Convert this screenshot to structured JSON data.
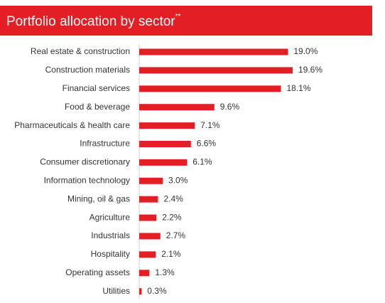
{
  "chart_data": {
    "type": "bar",
    "orientation": "horizontal",
    "title": "Portfolio allocation by sector",
    "title_superscript": "**",
    "color": "#e31e24",
    "categories": [
      "Real estate & construction",
      "Construction materials",
      "Financial services",
      "Food & beverage",
      "Pharmaceuticals & health care",
      "Infrastructure",
      "Consumer discretionary",
      "Information technology",
      "Mining, oil & gas",
      "Agriculture",
      "Industrials",
      "Hospitality",
      "Operating assets",
      "Utilities"
    ],
    "values": [
      19.0,
      19.6,
      18.1,
      9.6,
      7.1,
      6.6,
      6.1,
      3.0,
      2.4,
      2.2,
      2.7,
      2.1,
      1.3,
      0.3
    ],
    "value_labels": [
      "19.0%",
      "19.6%",
      "18.1%",
      "9.6%",
      "7.1%",
      "6.6%",
      "6.1%",
      "3.0%",
      "2.4%",
      "2.2%",
      "2.7%",
      "2.1%",
      "1.3%",
      "0.3%"
    ]
  }
}
